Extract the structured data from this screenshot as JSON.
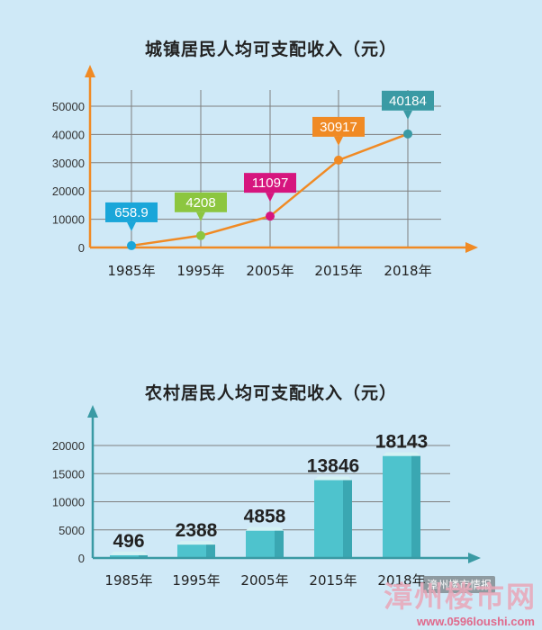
{
  "chart_data": [
    {
      "type": "line",
      "title": "城镇居民人均可支配收入（元）",
      "categories": [
        "1985年",
        "1995年",
        "2005年",
        "2015年",
        "2018年"
      ],
      "values": [
        658.9,
        4208,
        11097,
        30917,
        40184
      ],
      "value_labels": [
        "658.9",
        "4208",
        "11097",
        "30917",
        "40184"
      ],
      "label_colors": [
        "#1aa6d9",
        "#8cc63f",
        "#d6157e",
        "#f08a24",
        "#3a9aa4"
      ],
      "yticks": [
        0,
        10000,
        20000,
        30000,
        40000,
        50000
      ],
      "ylim": [
        0,
        50000
      ],
      "grid": true,
      "line_color": "#f08a24"
    },
    {
      "type": "bar",
      "title": "农村居民人均可支配收入（元）",
      "categories": [
        "1985年",
        "1995年",
        "2005年",
        "2015年",
        "2018年"
      ],
      "values": [
        496,
        2388,
        4858,
        13846,
        18143
      ],
      "value_labels": [
        "496",
        "2388",
        "4858",
        "13846",
        "18143"
      ],
      "yticks": [
        0,
        5000,
        10000,
        15000,
        20000
      ],
      "ylim": [
        0,
        20000
      ],
      "grid": true,
      "bar_color": "#4ec3cd"
    }
  ],
  "watermark": {
    "site_cn": "漳州楼市网",
    "url": "www.0596loushi.com",
    "wechat": "漳州楼市情报"
  }
}
